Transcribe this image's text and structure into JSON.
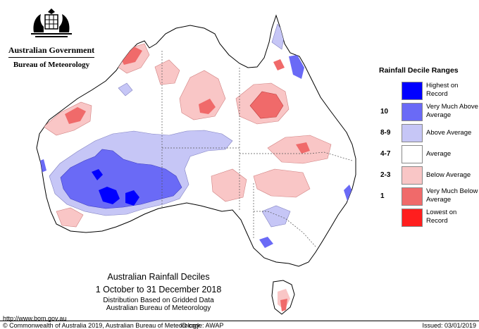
{
  "header": {
    "org_name": "Australian Government",
    "agency_name": "Bureau of Meteorology"
  },
  "legend": {
    "title": "Rainfall Decile Ranges",
    "items": [
      {
        "code": "",
        "label": "Highest on Record",
        "color": "#0000ff"
      },
      {
        "code": "10",
        "label": "Very Much Above Average",
        "color": "#6a6af6"
      },
      {
        "code": "8-9",
        "label": "Above Average",
        "color": "#c6c6f6"
      },
      {
        "code": "4-7",
        "label": "Average",
        "color": "#ffffff"
      },
      {
        "code": "2-3",
        "label": "Below Average",
        "color": "#f9c6c6"
      },
      {
        "code": "1",
        "label": "Very Much Below Average",
        "color": "#f06a6a"
      },
      {
        "code": "",
        "label": "Lowest on Record",
        "color": "#ff1e1e"
      }
    ]
  },
  "caption": {
    "title": "Australian Rainfall Deciles",
    "period": "1 October to 31 December 2018",
    "method": "Distribution Based on Gridded Data",
    "source": "Australian Bureau of Meteorology"
  },
  "footer": {
    "url": "http://www.bom.gov.au",
    "copyright": "© Commonwealth of Australia 2019, Australian Bureau of Meteorology",
    "id_code": "ID code: AWAP",
    "issued": "Issued: 03/01/2019"
  }
}
